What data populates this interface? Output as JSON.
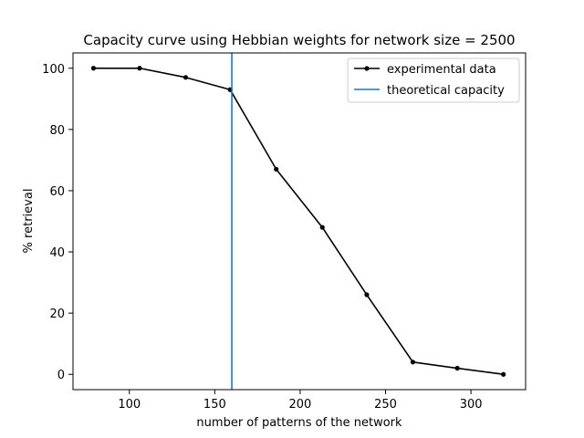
{
  "chart_data": {
    "type": "line",
    "title": "Capacity curve using Hebbian weights for network size = 2500",
    "xlabel": "number of patterns of the network",
    "ylabel": "% retrieval",
    "xlim": [
      67,
      332
    ],
    "ylim": [
      -5,
      105
    ],
    "xticks": [
      100,
      150,
      200,
      250,
      300
    ],
    "yticks": [
      0,
      20,
      40,
      60,
      80,
      100
    ],
    "grid": false,
    "legend_position": "top-right",
    "series": [
      {
        "name": "experimental data",
        "color": "#000000",
        "marker": "dot",
        "x": [
          79,
          106,
          133,
          159,
          186,
          213,
          239,
          266,
          292,
          319
        ],
        "y": [
          100,
          100,
          97,
          93,
          67,
          48,
          26,
          4,
          2,
          0
        ]
      }
    ],
    "vlines": [
      {
        "name": "theoretical capacity",
        "x": 160,
        "color": "#1f77b4"
      }
    ]
  }
}
